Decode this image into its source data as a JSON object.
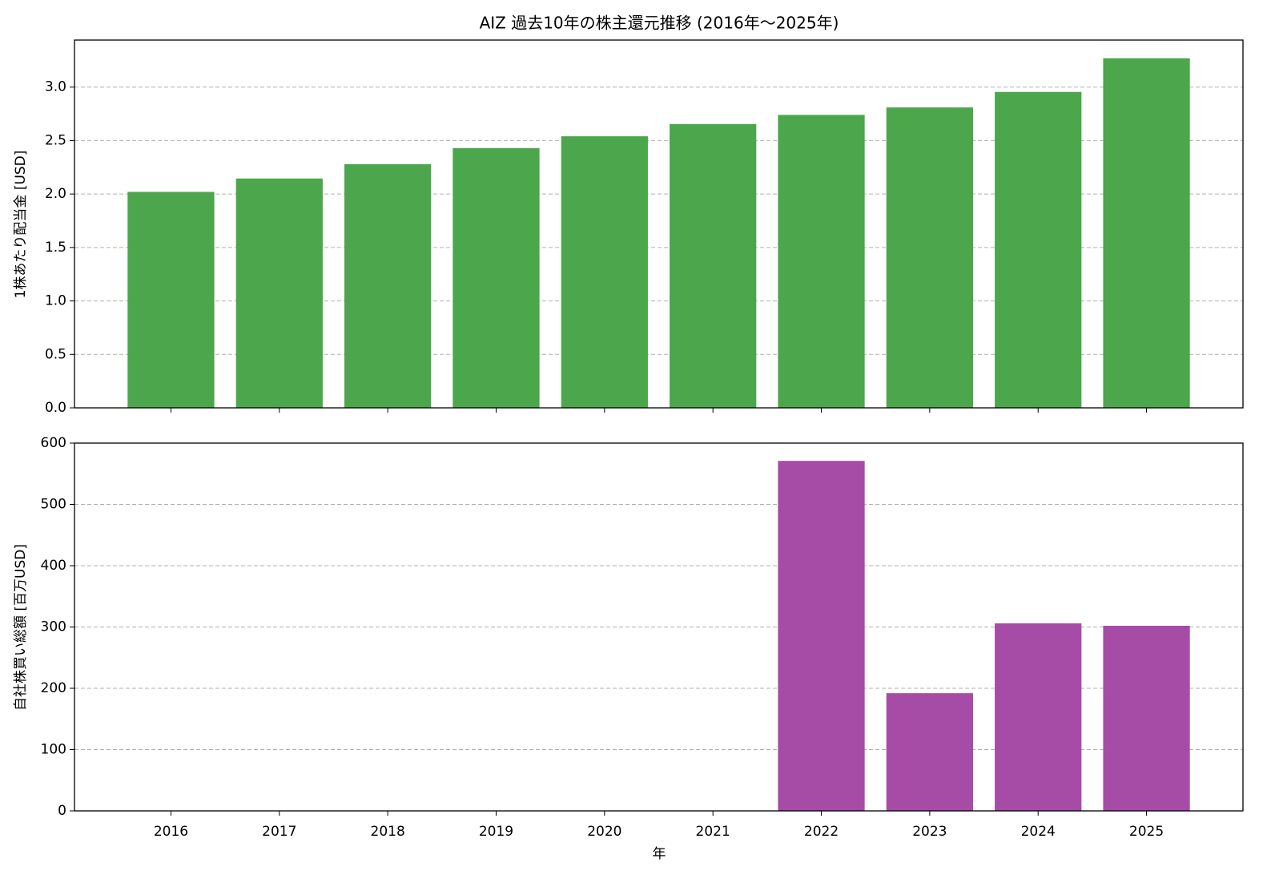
{
  "chart_data": [
    {
      "type": "bar",
      "title": "AIZ 過去10年の株主還元推移 (2016年～2025年)",
      "ylabel": "1株あたり配当金 [USD]",
      "values": [
        2.02,
        2.145,
        2.28,
        2.43,
        2.54,
        2.655,
        2.74,
        2.81,
        2.955,
        3.27
      ],
      "color": "#4ca64c",
      "ylim": [
        0,
        3.44
      ],
      "yticks": [
        {
          "value": 0,
          "label": "0.0"
        },
        {
          "value": 0.5,
          "label": "0.5"
        },
        {
          "value": 1,
          "label": "1.0"
        },
        {
          "value": 1.5,
          "label": "1.5"
        },
        {
          "value": 2,
          "label": "2.0"
        },
        {
          "value": 2.5,
          "label": "2.5"
        },
        {
          "value": 3,
          "label": "3.0"
        }
      ],
      "grid": true
    },
    {
      "type": "bar",
      "ylabel": "自社株買い総額 [百万USD]",
      "xlabel": "年",
      "categories": [
        "2016",
        "2017",
        "2018",
        "2019",
        "2020",
        "2021",
        "2022",
        "2023",
        "2024",
        "2025"
      ],
      "values": [
        0,
        0,
        0,
        0,
        0,
        0,
        571,
        192,
        306,
        302
      ],
      "color": "#a64ca6",
      "ylim": [
        0,
        600
      ],
      "yticks": [
        0,
        100,
        200,
        300,
        400,
        500,
        600
      ],
      "grid": true
    }
  ]
}
